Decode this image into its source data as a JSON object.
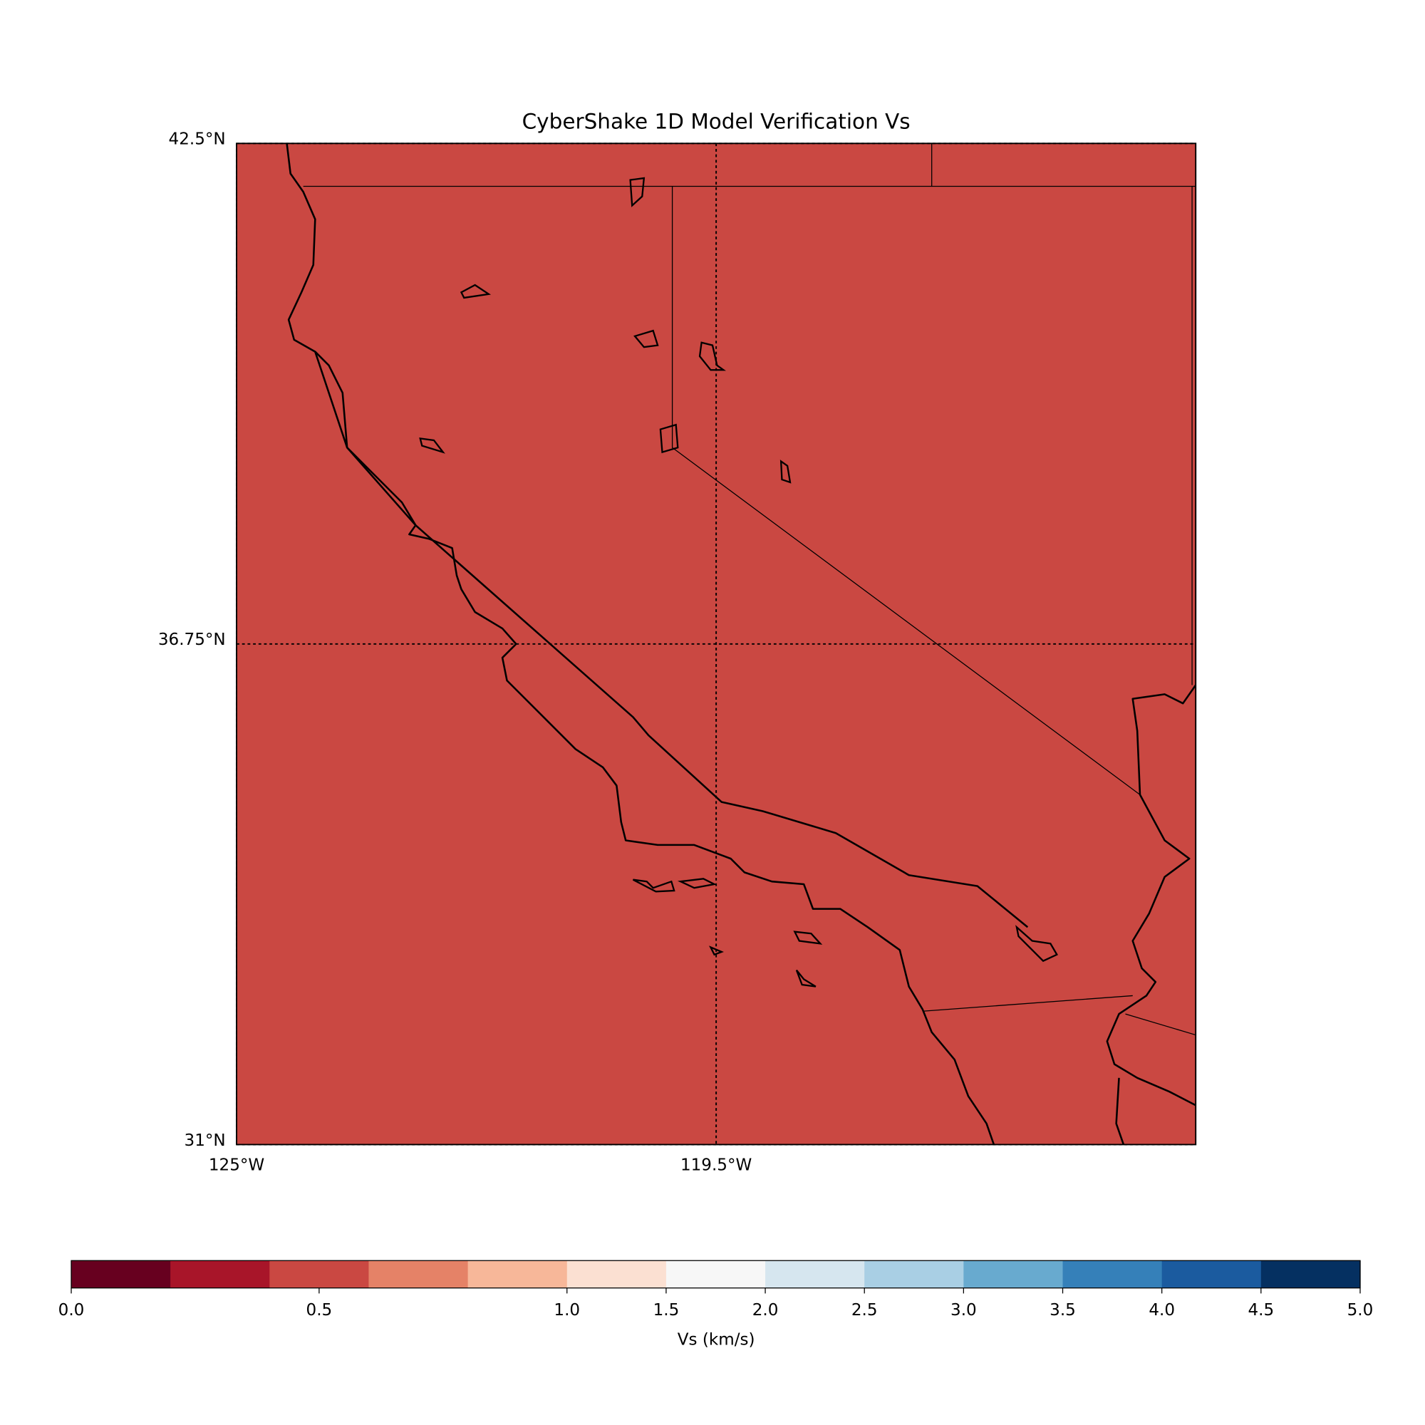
{
  "chart_data": {
    "type": "map",
    "title": "CyberShake 1D Model Verification Vs",
    "value": 0.5,
    "xlim": [
      -125,
      -114
    ],
    "ylim": [
      31,
      42.5
    ],
    "xticks": [
      {
        "value": -125,
        "label": "125°W"
      },
      {
        "value": -119.5,
        "label": "119.5°W"
      }
    ],
    "yticks": [
      {
        "value": 31,
        "label": "31°N"
      },
      {
        "value": 36.75,
        "label": "36.75°N"
      },
      {
        "value": 42.5,
        "label": "42.5°N"
      }
    ],
    "grid": true,
    "colorbar": {
      "label": "Vs (km/s)",
      "boundaries": [
        0,
        0.2,
        0.4,
        0.6,
        0.8,
        1.0,
        1.5,
        2.0,
        2.5,
        3.0,
        3.5,
        4.0,
        4.5,
        5.0
      ],
      "colors": [
        "#67001f",
        "#a81529",
        "#ca4842",
        "#e58267",
        "#f7b799",
        "#fbe0d2",
        "#f7f7f7",
        "#d6e6ef",
        "#a9cfe4",
        "#68aacf",
        "#3580b9",
        "#1b5b9f",
        "#053061"
      ],
      "ticks": [
        {
          "value": 0,
          "label": "0.0"
        },
        0.5,
        {
          "value": 1,
          "label": "1.0"
        },
        1.5,
        {
          "value": 2,
          "label": "2.0"
        },
        2.5,
        {
          "value": 3,
          "label": "3.0"
        },
        3.5,
        {
          "value": 4,
          "label": "4.0"
        },
        4.5,
        {
          "value": 5,
          "label": "5.0"
        }
      ]
    }
  }
}
